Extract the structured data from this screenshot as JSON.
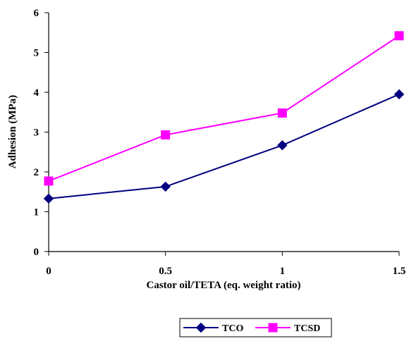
{
  "chart_data": {
    "type": "line",
    "title": "",
    "xlabel": "Castor oil/TETA (eq. weight ratio)",
    "ylabel": "Adhesion (MPa)",
    "x": [
      0,
      0.5,
      1,
      1.5
    ],
    "x_tick_labels": [
      "0",
      "0.5",
      "1",
      "1.5"
    ],
    "y_tick_labels": [
      "0",
      "1",
      "2",
      "3",
      "4",
      "5",
      "6"
    ],
    "xlim": [
      0,
      1.5
    ],
    "ylim": [
      0,
      6
    ],
    "grid": false,
    "legend_position": "bottom",
    "series": [
      {
        "name": "TCO",
        "values": [
          1.33,
          1.63,
          2.67,
          3.95
        ],
        "color": "#000080",
        "marker": "diamond"
      },
      {
        "name": "TCSD",
        "values": [
          1.77,
          2.93,
          3.48,
          5.42
        ],
        "color": "#FF00FF",
        "marker": "square"
      }
    ]
  }
}
